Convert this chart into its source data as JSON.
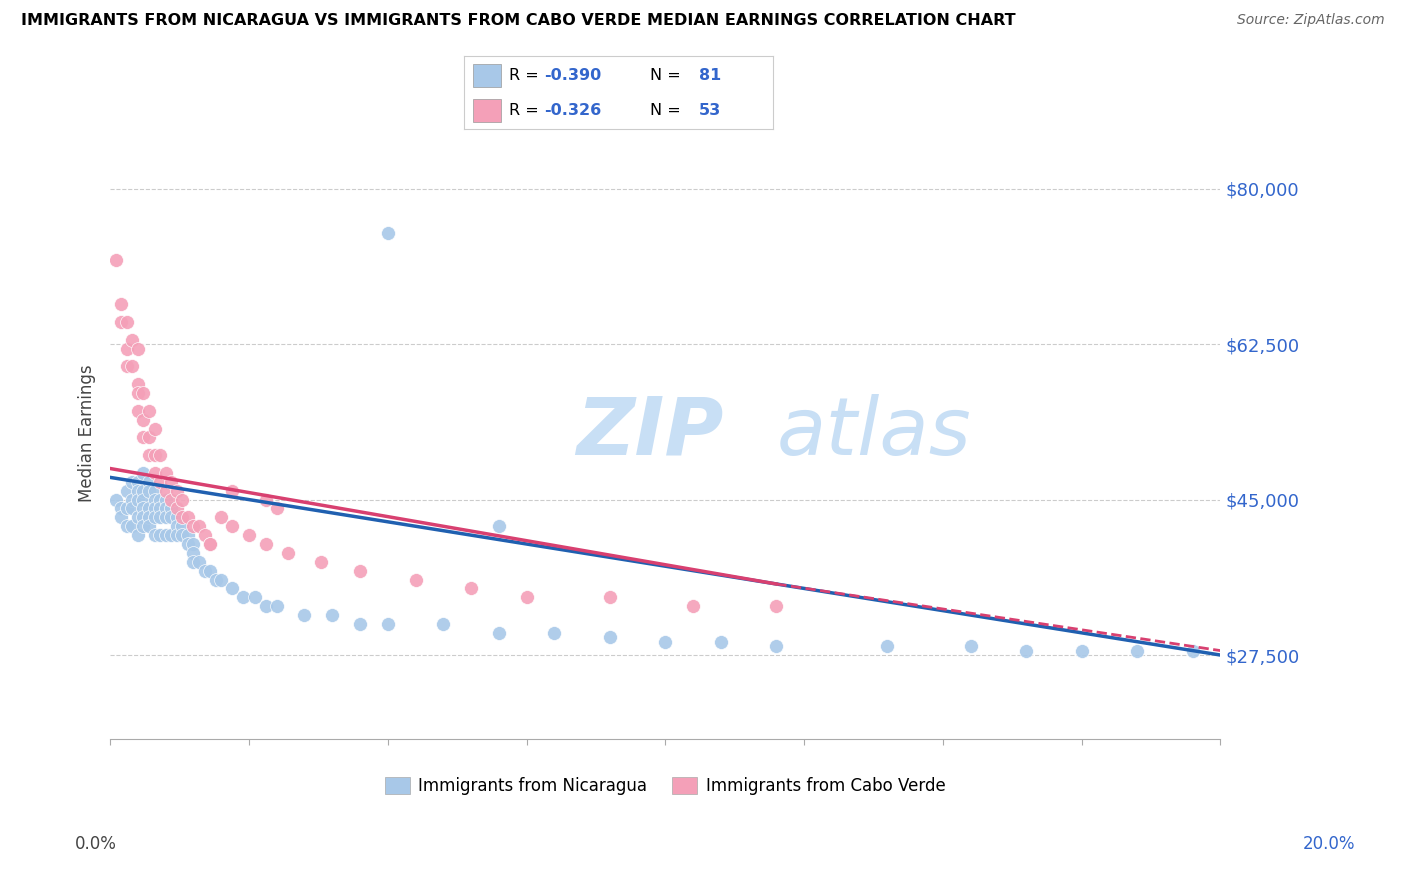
{
  "title": "IMMIGRANTS FROM NICARAGUA VS IMMIGRANTS FROM CABO VERDE MEDIAN EARNINGS CORRELATION CHART",
  "source": "Source: ZipAtlas.com",
  "ylabel": "Median Earnings",
  "yticks": [
    27500,
    45000,
    62500,
    80000
  ],
  "ytick_labels": [
    "$27,500",
    "$45,000",
    "$62,500",
    "$80,000"
  ],
  "xmin": 0.0,
  "xmax": 0.2,
  "ymin": 18000,
  "ymax": 87000,
  "blue_color": "#a8c8e8",
  "pink_color": "#f4a0b8",
  "blue_line_color": "#2060b0",
  "pink_line_color": "#d84070",
  "legend1_label": "Immigrants from Nicaragua",
  "legend2_label": "Immigrants from Cabo Verde",
  "blue_scatter_x": [
    0.001,
    0.002,
    0.002,
    0.003,
    0.003,
    0.003,
    0.004,
    0.004,
    0.004,
    0.004,
    0.005,
    0.005,
    0.005,
    0.005,
    0.005,
    0.006,
    0.006,
    0.006,
    0.006,
    0.006,
    0.006,
    0.007,
    0.007,
    0.007,
    0.007,
    0.007,
    0.008,
    0.008,
    0.008,
    0.008,
    0.008,
    0.009,
    0.009,
    0.009,
    0.009,
    0.01,
    0.01,
    0.01,
    0.01,
    0.011,
    0.011,
    0.011,
    0.012,
    0.012,
    0.012,
    0.013,
    0.013,
    0.014,
    0.014,
    0.015,
    0.015,
    0.015,
    0.016,
    0.017,
    0.018,
    0.019,
    0.02,
    0.022,
    0.024,
    0.026,
    0.028,
    0.03,
    0.035,
    0.04,
    0.045,
    0.05,
    0.06,
    0.07,
    0.08,
    0.09,
    0.1,
    0.11,
    0.12,
    0.14,
    0.155,
    0.165,
    0.175,
    0.185,
    0.195,
    0.07,
    0.05
  ],
  "blue_scatter_y": [
    45000,
    44000,
    43000,
    46000,
    44000,
    42000,
    47000,
    45000,
    44000,
    42000,
    47000,
    46000,
    45000,
    43000,
    41000,
    48000,
    46000,
    45000,
    44000,
    43000,
    42000,
    47000,
    46000,
    44000,
    43000,
    42000,
    46000,
    45000,
    44000,
    43000,
    41000,
    45000,
    44000,
    43000,
    41000,
    45000,
    44000,
    43000,
    41000,
    44000,
    43000,
    41000,
    43000,
    42000,
    41000,
    42000,
    41000,
    41000,
    40000,
    40000,
    39000,
    38000,
    38000,
    37000,
    37000,
    36000,
    36000,
    35000,
    34000,
    34000,
    33000,
    33000,
    32000,
    32000,
    31000,
    31000,
    31000,
    30000,
    30000,
    29500,
    29000,
    29000,
    28500,
    28500,
    28500,
    28000,
    28000,
    28000,
    28000,
    42000,
    75000
  ],
  "pink_scatter_x": [
    0.001,
    0.002,
    0.002,
    0.003,
    0.003,
    0.003,
    0.004,
    0.004,
    0.005,
    0.005,
    0.005,
    0.005,
    0.006,
    0.006,
    0.006,
    0.007,
    0.007,
    0.007,
    0.008,
    0.008,
    0.008,
    0.009,
    0.009,
    0.01,
    0.01,
    0.011,
    0.011,
    0.012,
    0.012,
    0.013,
    0.013,
    0.014,
    0.015,
    0.016,
    0.017,
    0.018,
    0.02,
    0.022,
    0.025,
    0.028,
    0.032,
    0.038,
    0.045,
    0.055,
    0.065,
    0.075,
    0.09,
    0.105,
    0.12,
    0.028,
    0.022,
    0.03,
    0.018
  ],
  "pink_scatter_y": [
    72000,
    67000,
    65000,
    65000,
    62000,
    60000,
    63000,
    60000,
    62000,
    58000,
    57000,
    55000,
    57000,
    54000,
    52000,
    55000,
    52000,
    50000,
    53000,
    50000,
    48000,
    50000,
    47000,
    48000,
    46000,
    47000,
    45000,
    46000,
    44000,
    45000,
    43000,
    43000,
    42000,
    42000,
    41000,
    40000,
    43000,
    42000,
    41000,
    40000,
    39000,
    38000,
    37000,
    36000,
    35000,
    34000,
    34000,
    33000,
    33000,
    45000,
    46000,
    44000,
    40000
  ]
}
